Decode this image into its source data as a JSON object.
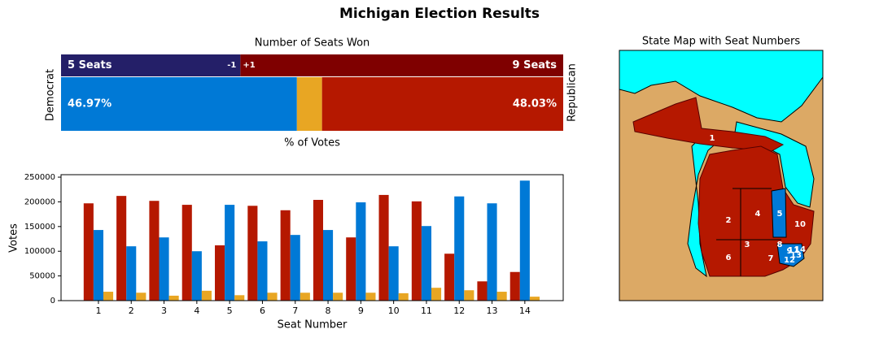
{
  "title": "Michigan Election Results",
  "chart_data": [
    {
      "type": "stacked-barh",
      "title": "Number of Seats Won",
      "xlabel": "% of Votes",
      "ylabel": "Democrat",
      "y2label": "Republican",
      "seats": {
        "values": [
          5,
          9
        ],
        "value_labels": [
          "5 Seats",
          "9 Seats"
        ],
        "colors": [
          "#241f68",
          "#7f0000"
        ],
        "changes": [
          {
            "value": -1,
            "label": "-1"
          },
          {
            "value": 1,
            "label": "+1"
          }
        ]
      },
      "votes": {
        "values": [
          46.97,
          5.0,
          48.03
        ],
        "value_labels": [
          "46.97%",
          null,
          "48.03%"
        ],
        "colors": [
          "#0079d6",
          "#e8a623",
          "#b51800"
        ]
      }
    },
    {
      "type": "grouped-bar",
      "xlabel": "Seat Number",
      "ylabel": "Votes",
      "x": [
        1,
        2,
        3,
        4,
        5,
        6,
        7,
        8,
        9,
        10,
        11,
        12,
        13,
        14
      ],
      "xlim": [
        -0.14,
        15.17
      ],
      "xticks": [
        1,
        2,
        3,
        4,
        5,
        6,
        7,
        8,
        9,
        10,
        11,
        12,
        13,
        14
      ],
      "ylim": [
        0,
        255000
      ],
      "yticks": [
        0,
        50000,
        100000,
        150000,
        200000,
        250000
      ],
      "series": [
        {
          "color": "#b51800",
          "values": [
            197000,
            212000,
            202000,
            194000,
            112000,
            192000,
            183000,
            204000,
            128000,
            214000,
            201000,
            95000,
            39000,
            58000
          ]
        },
        {
          "color": "#0079d6",
          "values": [
            143000,
            110000,
            128000,
            100000,
            194000,
            120000,
            133000,
            143000,
            199000,
            110000,
            151000,
            211000,
            197000,
            243000
          ]
        },
        {
          "color": "#e8a623",
          "values": [
            18000,
            16000,
            10000,
            20000,
            11000,
            16000,
            16000,
            16000,
            16000,
            15000,
            26000,
            21000,
            18000,
            8000
          ]
        }
      ]
    },
    {
      "type": "map",
      "title": "State Map with Seat Numbers",
      "districts": [
        1,
        2,
        3,
        4,
        5,
        6,
        7,
        8,
        9,
        10,
        11,
        12,
        13,
        14
      ]
    }
  ]
}
